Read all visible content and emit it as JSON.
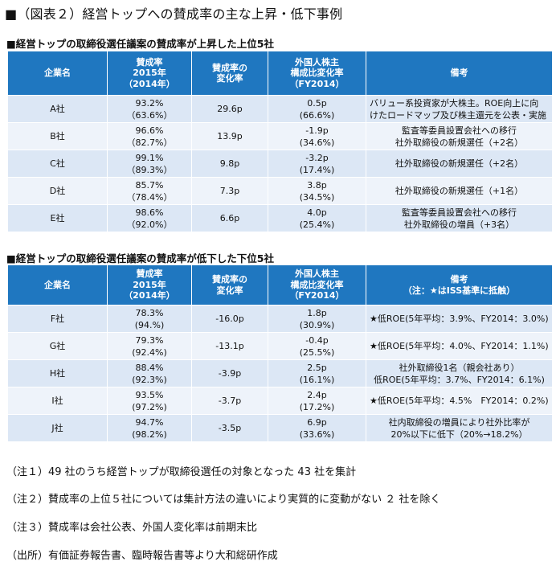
{
  "title": "■（図表２）経営トップへの賛成率の主な上昇・低下事例",
  "table1": {
    "heading": "■経営トップの取締役選任議案の賛成率が上昇した上位5社",
    "headers": {
      "company": "企業名",
      "rate": [
        "賛成率",
        "2015年",
        "（2014年）"
      ],
      "change": [
        "賛成率の",
        "変化率"
      ],
      "foreign": [
        "外国人株主",
        "構成比変化率",
        "（FY2014）"
      ],
      "note": [
        "備考"
      ]
    },
    "rows": [
      {
        "company": "A社",
        "rate": "93.2%",
        "rate_prev": "（63.6%）",
        "change": "29.6p",
        "foreign": "0.5p",
        "foreign_prev": "(66.6%)",
        "note": [
          "バリュー系投資家が大株主。ROE向上に向",
          "けたロードマップ及び株主還元を公表・実施"
        ]
      },
      {
        "company": "B社",
        "rate": "96.6%",
        "rate_prev": "（82.7%）",
        "change": "13.9p",
        "foreign": "-1.9p",
        "foreign_prev": "(34.6%)",
        "note": [
          "監査等委員設置会社への移行",
          "社外取締役の新規選任（+2名）"
        ]
      },
      {
        "company": "C社",
        "rate": "99.1%",
        "rate_prev": "（89.3%）",
        "change": "9.8p",
        "foreign": "-3.2p",
        "foreign_prev": "(17.4%)",
        "note": [
          "社外取締役の新規選任（+2名）"
        ]
      },
      {
        "company": "D社",
        "rate": "85.7%",
        "rate_prev": "（78.4%）",
        "change": "7.3p",
        "foreign": "3.8p",
        "foreign_prev": "(34.5%)",
        "note": [
          "社外取締役の新規選任（+1名）"
        ]
      },
      {
        "company": "E社",
        "rate": "98.6%",
        "rate_prev": "（92.0%）",
        "change": "6.6p",
        "foreign": "4.0p",
        "foreign_prev": "(25.4%)",
        "note": [
          "監査等委員設置会社への移行",
          "社外取締役の増員（+3名）"
        ]
      }
    ]
  },
  "table2": {
    "heading": "■経営トップの取締役選任議案の賛成率が低下した下位5社",
    "headers": {
      "company": "企業名",
      "rate": [
        "賛成率",
        "2015年",
        "（2014年）"
      ],
      "change": [
        "賛成率の",
        "変化率"
      ],
      "foreign": [
        "外国人株主",
        "構成比変化率",
        "（FY2014）"
      ],
      "note": [
        "備考",
        "（注：★はISS基準に抵触）"
      ]
    },
    "rows": [
      {
        "company": "F社",
        "rate": "78.3%",
        "rate_prev": "(94.%)",
        "change": "-16.0p",
        "foreign": "1.8p",
        "foreign_prev": "(30.9%)",
        "note": [
          "★低ROE(5年平均：3.9%、FY2014：3.0%)"
        ]
      },
      {
        "company": "G社",
        "rate": "79.3%",
        "rate_prev": "(92.4%)",
        "change": "-13.1p",
        "foreign": "-0.4p",
        "foreign_prev": "(25.5%)",
        "note": [
          "★低ROE(5年平均：4.0%、FY2014：1.1%)"
        ]
      },
      {
        "company": "H社",
        "rate": "88.4%",
        "rate_prev": "(92.3%)",
        "change": "-3.9p",
        "foreign": "2.5p",
        "foreign_prev": "(16.1%)",
        "note": [
          "社外取締役1名（親会社あり）",
          "低ROE(5年平均：3.7%、FY2014：6.1%)"
        ]
      },
      {
        "company": "I社",
        "rate": "93.5%",
        "rate_prev": "(97.2%)",
        "change": "-3.7p",
        "foreign": "2.4p",
        "foreign_prev": "(17.2%)",
        "note": [
          "★低ROE(5年平均：4.5%　FY2014：0.2%)"
        ]
      },
      {
        "company": "J社",
        "rate": "94.7%",
        "rate_prev": "(98.2%)",
        "change": "-3.5p",
        "foreign": "6.9p",
        "foreign_prev": "(33.6%)",
        "note": [
          "社内取締役の増員により社外比率が",
          "20%以下に低下（20%→18.2%）"
        ]
      }
    ]
  },
  "footnotes": [
    "（注１）49 社のうち経営トップが取締役選任の対象となった 43 社を集計",
    "（注２）賛成率の上位５社については集計方法の違いにより実質的に変動がない ２ 社を除く",
    "（注３）賛成率は会社公表、外国人変化率は前期末比",
    "（出所）有価証券報告書、臨時報告書等より大和総研作成"
  ]
}
